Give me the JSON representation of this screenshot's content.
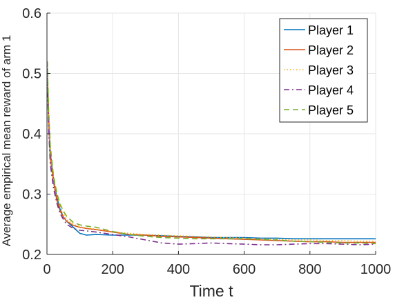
{
  "chart_data": {
    "type": "line",
    "xlabel": "Time t",
    "ylabel": "Average empirical mean reward of arm 1",
    "xlim": [
      0,
      1000
    ],
    "ylim": [
      0.2,
      0.6
    ],
    "xticks": [
      "0",
      "200",
      "400",
      "600",
      "800",
      "1000"
    ],
    "yticks": [
      "0.2",
      "0.3",
      "0.4",
      "0.5",
      "0.6"
    ],
    "grid": true,
    "legend_position": "top-right",
    "series": [
      {
        "name": "Player 1",
        "color": "#0072BD",
        "style": "solid",
        "x": [
          1,
          5,
          10,
          20,
          30,
          40,
          50,
          60,
          80,
          100,
          120,
          150,
          200,
          250,
          300,
          350,
          400,
          450,
          500,
          550,
          600,
          650,
          700,
          750,
          800,
          850,
          900,
          950,
          1000
        ],
        "y": [
          0.51,
          0.43,
          0.37,
          0.325,
          0.295,
          0.275,
          0.262,
          0.255,
          0.245,
          0.235,
          0.232,
          0.233,
          0.232,
          0.232,
          0.232,
          0.231,
          0.23,
          0.229,
          0.228,
          0.228,
          0.228,
          0.227,
          0.227,
          0.226,
          0.226,
          0.226,
          0.226,
          0.226,
          0.226
        ]
      },
      {
        "name": "Player 2",
        "color": "#D95319",
        "style": "solid",
        "x": [
          1,
          5,
          10,
          20,
          30,
          40,
          50,
          60,
          80,
          100,
          120,
          150,
          200,
          250,
          300,
          350,
          400,
          450,
          500,
          550,
          600,
          650,
          700,
          750,
          800,
          850,
          900,
          950,
          1000
        ],
        "y": [
          0.5,
          0.42,
          0.36,
          0.32,
          0.29,
          0.272,
          0.262,
          0.255,
          0.248,
          0.245,
          0.243,
          0.241,
          0.237,
          0.233,
          0.232,
          0.23,
          0.229,
          0.228,
          0.227,
          0.226,
          0.225,
          0.224,
          0.223,
          0.222,
          0.221,
          0.221,
          0.22,
          0.22,
          0.22
        ]
      },
      {
        "name": "Player 3",
        "color": "#EDB120",
        "style": "dotted",
        "x": [
          1,
          5,
          10,
          20,
          30,
          40,
          50,
          60,
          80,
          100,
          120,
          150,
          200,
          250,
          300,
          350,
          400,
          450,
          500,
          550,
          600,
          650,
          700,
          750,
          800,
          850,
          900,
          950,
          1000
        ],
        "y": [
          0.52,
          0.43,
          0.37,
          0.325,
          0.298,
          0.28,
          0.268,
          0.258,
          0.25,
          0.246,
          0.244,
          0.242,
          0.238,
          0.235,
          0.233,
          0.232,
          0.231,
          0.23,
          0.229,
          0.228,
          0.227,
          0.226,
          0.225,
          0.224,
          0.224,
          0.223,
          0.223,
          0.222,
          0.222
        ]
      },
      {
        "name": "Player 4",
        "color": "#7E2F8E",
        "style": "dashdot",
        "x": [
          1,
          5,
          10,
          20,
          30,
          40,
          50,
          60,
          80,
          100,
          120,
          150,
          200,
          250,
          300,
          350,
          400,
          450,
          500,
          550,
          600,
          650,
          700,
          750,
          800,
          850,
          900,
          950,
          1000
        ],
        "y": [
          0.49,
          0.41,
          0.35,
          0.31,
          0.285,
          0.268,
          0.258,
          0.25,
          0.243,
          0.24,
          0.239,
          0.237,
          0.233,
          0.229,
          0.224,
          0.219,
          0.217,
          0.218,
          0.219,
          0.218,
          0.217,
          0.216,
          0.216,
          0.217,
          0.218,
          0.218,
          0.217,
          0.216,
          0.217
        ]
      },
      {
        "name": "Player 5",
        "color": "#77AC30",
        "style": "dashed",
        "x": [
          1,
          5,
          10,
          20,
          30,
          40,
          50,
          60,
          80,
          100,
          120,
          150,
          200,
          250,
          300,
          350,
          400,
          450,
          500,
          550,
          600,
          650,
          700,
          750,
          800,
          850,
          900,
          950,
          1000
        ],
        "y": [
          0.52,
          0.44,
          0.38,
          0.33,
          0.302,
          0.283,
          0.272,
          0.263,
          0.253,
          0.249,
          0.247,
          0.245,
          0.238,
          0.233,
          0.23,
          0.228,
          0.227,
          0.226,
          0.226,
          0.226,
          0.226,
          0.225,
          0.224,
          0.222,
          0.221,
          0.22,
          0.219,
          0.219,
          0.218
        ]
      }
    ]
  }
}
